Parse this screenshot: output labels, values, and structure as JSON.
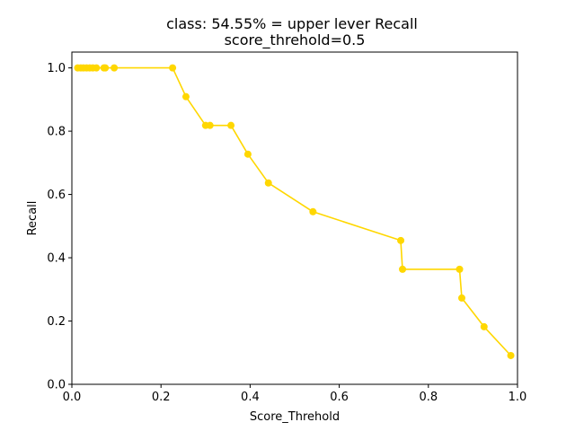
{
  "chart_data": {
    "type": "line",
    "title": "class: 54.55% = upper lever Recall",
    "subtitle": "score_threhold=0.5",
    "xlabel": "Score_Threhold",
    "ylabel": "Recall",
    "xlim": [
      0,
      1
    ],
    "ylim": [
      0,
      1.05
    ],
    "xticks": [
      0.0,
      0.2,
      0.4,
      0.6,
      0.8,
      1.0
    ],
    "xtick_labels": [
      "0.0",
      "0.2",
      "0.4",
      "0.6",
      "0.8",
      "1.0"
    ],
    "yticks": [
      0.0,
      0.2,
      0.4,
      0.6,
      0.8,
      1.0
    ],
    "ytick_labels": [
      "0.0",
      "0.2",
      "0.4",
      "0.6",
      "0.8",
      "1.0"
    ],
    "grid": false,
    "legend": false,
    "series": [
      {
        "color": "#FFD700",
        "marker": "circle",
        "points": [
          [
            0.985,
            0.0909
          ],
          [
            0.925,
            0.1818
          ],
          [
            0.875,
            0.2727
          ],
          [
            0.87,
            0.3636
          ],
          [
            0.742,
            0.3636
          ],
          [
            0.738,
            0.4545
          ],
          [
            0.541,
            0.5455
          ],
          [
            0.441,
            0.6364
          ],
          [
            0.395,
            0.7273
          ],
          [
            0.357,
            0.8182
          ],
          [
            0.31,
            0.8182
          ],
          [
            0.3,
            0.8182
          ],
          [
            0.256,
            0.9091
          ],
          [
            0.226,
            1.0
          ],
          [
            0.095,
            1.0
          ],
          [
            0.075,
            1.0
          ],
          [
            0.072,
            1.0
          ],
          [
            0.055,
            1.0
          ],
          [
            0.047,
            1.0
          ],
          [
            0.04,
            1.0
          ],
          [
            0.033,
            1.0
          ],
          [
            0.026,
            1.0
          ],
          [
            0.02,
            1.0
          ],
          [
            0.013,
            1.0
          ]
        ]
      }
    ]
  }
}
